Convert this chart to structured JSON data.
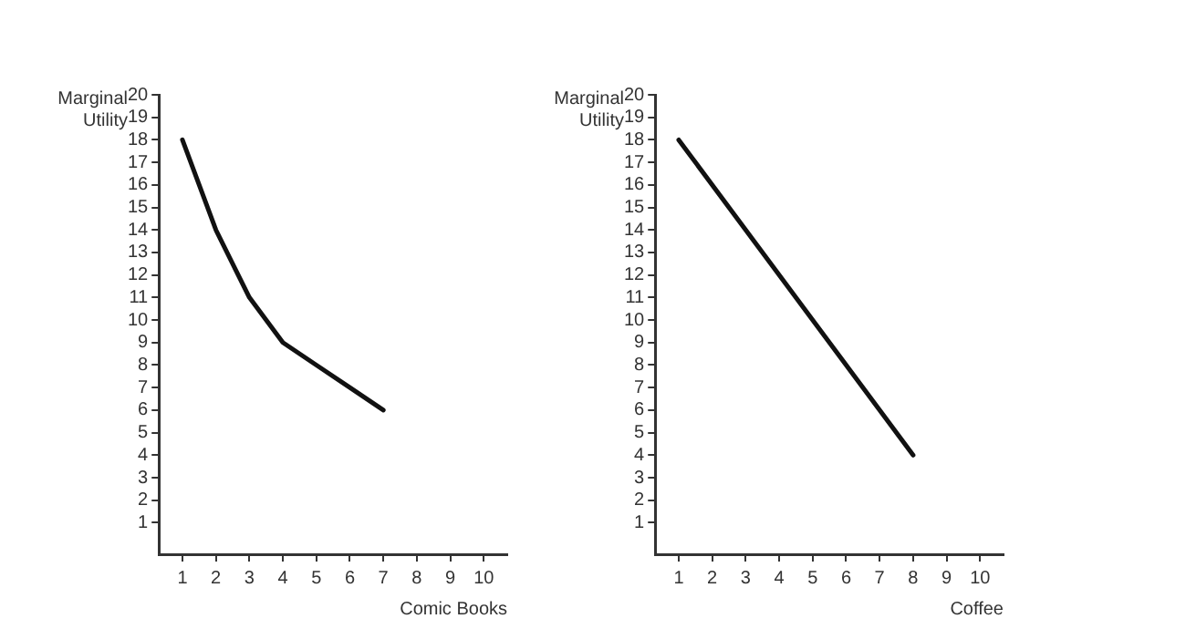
{
  "chart_data": [
    {
      "type": "line",
      "ylabel": "Marginal Utility",
      "xlabel": "Comic Books",
      "x": [
        1,
        2,
        3,
        4,
        5,
        6,
        7
      ],
      "series": [
        {
          "color": "#111111",
          "values": [
            18,
            14,
            11,
            9,
            8,
            7,
            6
          ]
        }
      ],
      "xlim": [
        0.3,
        10.7
      ],
      "ylim": [
        -0.4,
        20
      ],
      "xticks": [
        1,
        2,
        3,
        4,
        5,
        6,
        7,
        8,
        9,
        10
      ],
      "yticks": [
        1,
        2,
        3,
        4,
        5,
        6,
        7,
        8,
        9,
        10,
        11,
        12,
        13,
        14,
        15,
        16,
        17,
        18,
        19,
        20
      ],
      "grid": false,
      "marker": "none",
      "line_style": "solid",
      "legend": false
    },
    {
      "type": "line",
      "ylabel": "Marginal Utility",
      "xlabel": "Coffee",
      "x": [
        1,
        8
      ],
      "series": [
        {
          "color": "#111111",
          "values": [
            18,
            4
          ]
        }
      ],
      "xlim": [
        0.3,
        10.7
      ],
      "ylim": [
        -0.4,
        20
      ],
      "xticks": [
        1,
        2,
        3,
        4,
        5,
        6,
        7,
        8,
        9,
        10
      ],
      "yticks": [
        1,
        2,
        3,
        4,
        5,
        6,
        7,
        8,
        9,
        10,
        11,
        12,
        13,
        14,
        15,
        16,
        17,
        18,
        19,
        20
      ],
      "grid": false,
      "marker": "none",
      "line_style": "solid",
      "legend": false
    }
  ]
}
